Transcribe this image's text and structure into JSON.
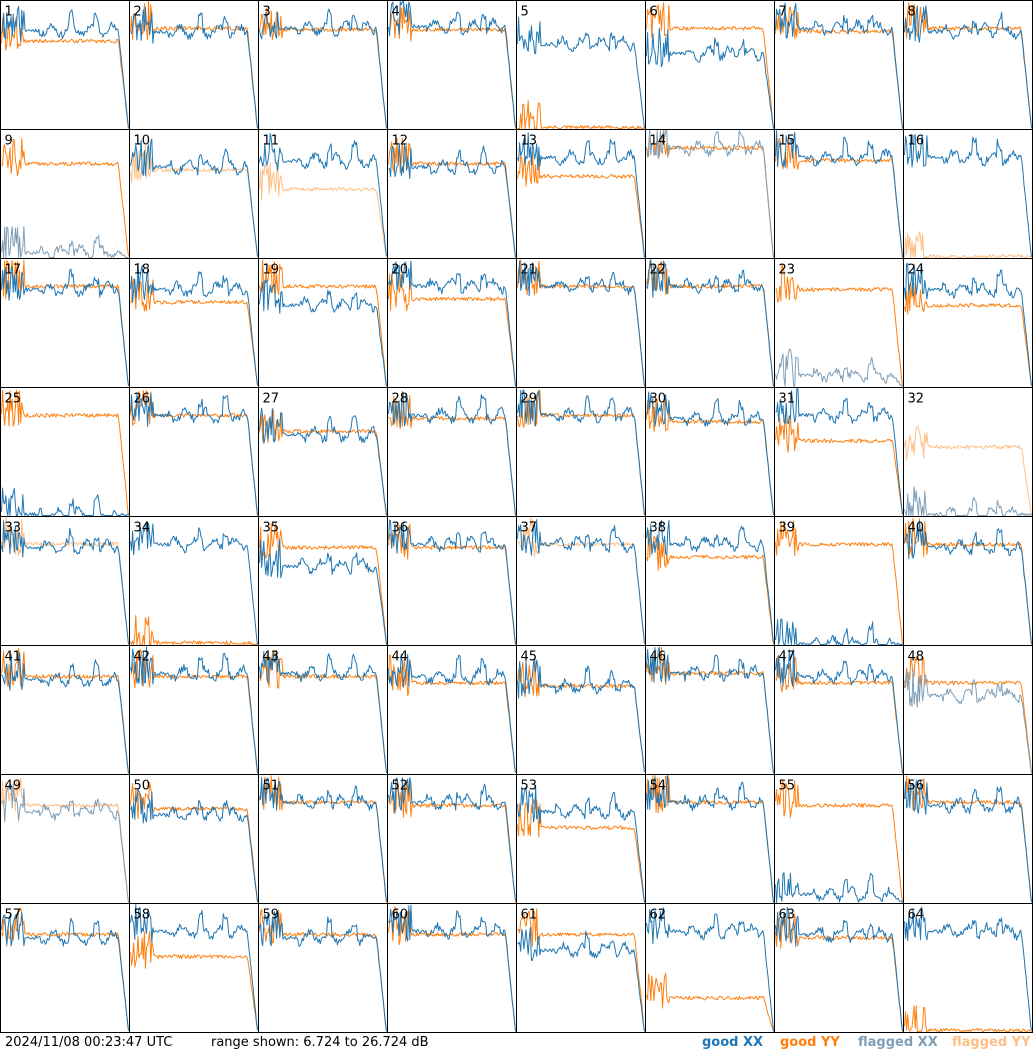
{
  "footer": {
    "timestamp": "2024/11/08 00:23:47 UTC",
    "range_label": "range shown: 6.724 to 26.724 dB"
  },
  "legend": [
    {
      "pol": "XX",
      "label": "good XX",
      "color": "#1f77b4"
    },
    {
      "pol": "YY",
      "label": "good YY",
      "color": "#ff7f0e"
    },
    {
      "pol": "XX",
      "label": "flagged XX",
      "color": "#7f9fb8"
    },
    {
      "pol": "YY",
      "label": "flagged YY",
      "color": "#ffbf86"
    }
  ],
  "chart_data": {
    "type": "line",
    "grid": {
      "rows": 8,
      "cols": 8
    },
    "ylim": [
      6.724,
      26.724
    ],
    "yunit": "dB",
    "panel_labels": [
      "1",
      "2",
      "3",
      "4",
      "5",
      "6",
      "7",
      "8",
      "9",
      "10",
      "11",
      "12",
      "13",
      "14",
      "15",
      "16",
      "17",
      "18",
      "19",
      "20",
      "21",
      "22",
      "23",
      "24",
      "25",
      "26",
      "27",
      "28",
      "29",
      "30",
      "31",
      "32",
      "33",
      "34",
      "35",
      "36",
      "37",
      "38",
      "39",
      "40",
      "41",
      "42",
      "43",
      "44",
      "45",
      "46",
      "47",
      "48",
      "49",
      "50",
      "51",
      "52",
      "53",
      "54",
      "55",
      "56",
      "57",
      "58",
      "59",
      "60",
      "61",
      "62",
      "63",
      "64"
    ],
    "series_by_tile": [
      {
        "tile": 1,
        "xx": {
          "flagged": false,
          "level": 22.2
        },
        "yy": {
          "flagged": false,
          "level": 20.5
        }
      },
      {
        "tile": 2,
        "xx": {
          "flagged": false,
          "level": 22.0
        },
        "yy": {
          "flagged": false,
          "level": 22.5
        }
      },
      {
        "tile": 3,
        "xx": {
          "flagged": false,
          "level": 22.5
        },
        "yy": {
          "flagged": false,
          "level": 22.3
        }
      },
      {
        "tile": 4,
        "xx": {
          "flagged": false,
          "level": 22.8
        },
        "yy": {
          "flagged": false,
          "level": 22.3
        }
      },
      {
        "tile": 5,
        "xx": {
          "flagged": false,
          "level": 20.0
        },
        "yy": {
          "flagged": false,
          "level": 6.9
        }
      },
      {
        "tile": 6,
        "xx": {
          "flagged": false,
          "level": 18.5
        },
        "yy": {
          "flagged": false,
          "level": 22.5
        }
      },
      {
        "tile": 7,
        "xx": {
          "flagged": false,
          "level": 22.5
        },
        "yy": {
          "flagged": false,
          "level": 22.0
        }
      },
      {
        "tile": 8,
        "xx": {
          "flagged": false,
          "level": 22.0
        },
        "yy": {
          "flagged": false,
          "level": 22.5
        }
      },
      {
        "tile": 9,
        "xx": {
          "flagged": true,
          "level": 7.5
        },
        "yy": {
          "flagged": false,
          "level": 21.5
        }
      },
      {
        "tile": 10,
        "xx": {
          "flagged": false,
          "level": 21.0
        },
        "yy": {
          "flagged": true,
          "level": 20.5
        }
      },
      {
        "tile": 11,
        "xx": {
          "flagged": false,
          "level": 22.0
        },
        "yy": {
          "flagged": true,
          "level": 17.5
        }
      },
      {
        "tile": 12,
        "xx": {
          "flagged": false,
          "level": 21.0
        },
        "yy": {
          "flagged": false,
          "level": 21.5
        }
      },
      {
        "tile": 13,
        "xx": {
          "flagged": false,
          "level": 22.5
        },
        "yy": {
          "flagged": false,
          "level": 19.5
        }
      },
      {
        "tile": 14,
        "xx": {
          "flagged": true,
          "level": 24.0
        },
        "yy": {
          "flagged": false,
          "level": 24.0
        }
      },
      {
        "tile": 15,
        "xx": {
          "flagged": false,
          "level": 22.5
        },
        "yy": {
          "flagged": false,
          "level": 22.0
        }
      },
      {
        "tile": 16,
        "xx": {
          "flagged": false,
          "level": 22.5
        },
        "yy": {
          "flagged": true,
          "level": 6.9
        }
      },
      {
        "tile": 17,
        "xx": {
          "flagged": false,
          "level": 22.0
        },
        "yy": {
          "flagged": false,
          "level": 22.5
        }
      },
      {
        "tile": 18,
        "xx": {
          "flagged": false,
          "level": 22.0
        },
        "yy": {
          "flagged": false,
          "level": 20.0
        }
      },
      {
        "tile": 19,
        "xx": {
          "flagged": false,
          "level": 19.5
        },
        "yy": {
          "flagged": false,
          "level": 22.5
        }
      },
      {
        "tile": 20,
        "xx": {
          "flagged": false,
          "level": 22.5
        },
        "yy": {
          "flagged": false,
          "level": 20.5
        }
      },
      {
        "tile": 21,
        "xx": {
          "flagged": false,
          "level": 22.5
        },
        "yy": {
          "flagged": false,
          "level": 22.5
        }
      },
      {
        "tile": 22,
        "xx": {
          "flagged": false,
          "level": 22.5
        },
        "yy": {
          "flagged": false,
          "level": 22.5
        }
      },
      {
        "tile": 23,
        "xx": {
          "flagged": true,
          "level": 8.5
        },
        "yy": {
          "flagged": false,
          "level": 22.0
        }
      },
      {
        "tile": 24,
        "xx": {
          "flagged": false,
          "level": 22.0
        },
        "yy": {
          "flagged": false,
          "level": 19.5
        }
      },
      {
        "tile": 25,
        "xx": {
          "flagged": false,
          "level": 6.9
        },
        "yy": {
          "flagged": false,
          "level": 22.5
        }
      },
      {
        "tile": 26,
        "xx": {
          "flagged": false,
          "level": 22.5
        },
        "yy": {
          "flagged": false,
          "level": 22.5
        }
      },
      {
        "tile": 27,
        "xx": {
          "flagged": false,
          "level": 19.5
        },
        "yy": {
          "flagged": false,
          "level": 20.0
        }
      },
      {
        "tile": 28,
        "xx": {
          "flagged": false,
          "level": 22.5
        },
        "yy": {
          "flagged": false,
          "level": 22.0
        }
      },
      {
        "tile": 29,
        "xx": {
          "flagged": false,
          "level": 22.5
        },
        "yy": {
          "flagged": false,
          "level": 22.5
        }
      },
      {
        "tile": 30,
        "xx": {
          "flagged": false,
          "level": 22.0
        },
        "yy": {
          "flagged": false,
          "level": 21.5
        }
      },
      {
        "tile": 31,
        "xx": {
          "flagged": false,
          "level": 22.5
        },
        "yy": {
          "flagged": false,
          "level": 18.5
        }
      },
      {
        "tile": 32,
        "xx": {
          "flagged": true,
          "level": 6.9
        },
        "yy": {
          "flagged": true,
          "level": 17.5
        }
      },
      {
        "tile": 33,
        "xx": {
          "flagged": false,
          "level": 22.0
        },
        "yy": {
          "flagged": true,
          "level": 22.5
        }
      },
      {
        "tile": 34,
        "xx": {
          "flagged": false,
          "level": 22.5
        },
        "yy": {
          "flagged": false,
          "level": 7.0
        }
      },
      {
        "tile": 35,
        "xx": {
          "flagged": false,
          "level": 19.0
        },
        "yy": {
          "flagged": false,
          "level": 22.0
        }
      },
      {
        "tile": 36,
        "xx": {
          "flagged": false,
          "level": 22.5
        },
        "yy": {
          "flagged": false,
          "level": 22.0
        }
      },
      {
        "tile": 37,
        "xx": {
          "flagged": false,
          "level": 22.5
        },
        "yy": {
          "flagged": true,
          "level": 22.5
        }
      },
      {
        "tile": 38,
        "xx": {
          "flagged": false,
          "level": 22.5
        },
        "yy": {
          "flagged": false,
          "level": 20.5
        }
      },
      {
        "tile": 39,
        "xx": {
          "flagged": false,
          "level": 6.9
        },
        "yy": {
          "flagged": false,
          "level": 22.5
        }
      },
      {
        "tile": 40,
        "xx": {
          "flagged": false,
          "level": 22.0
        },
        "yy": {
          "flagged": false,
          "level": 22.5
        }
      },
      {
        "tile": 41,
        "xx": {
          "flagged": false,
          "level": 21.5
        },
        "yy": {
          "flagged": false,
          "level": 22.0
        }
      },
      {
        "tile": 42,
        "xx": {
          "flagged": false,
          "level": 22.5
        },
        "yy": {
          "flagged": false,
          "level": 22.0
        }
      },
      {
        "tile": 43,
        "xx": {
          "flagged": false,
          "level": 22.5
        },
        "yy": {
          "flagged": false,
          "level": 22.0
        }
      },
      {
        "tile": 44,
        "xx": {
          "flagged": false,
          "level": 22.0
        },
        "yy": {
          "flagged": false,
          "level": 21.0
        }
      },
      {
        "tile": 45,
        "xx": {
          "flagged": false,
          "level": 20.5
        },
        "yy": {
          "flagged": false,
          "level": 20.5
        }
      },
      {
        "tile": 46,
        "xx": {
          "flagged": false,
          "level": 22.5
        },
        "yy": {
          "flagged": false,
          "level": 22.5
        }
      },
      {
        "tile": 47,
        "xx": {
          "flagged": false,
          "level": 22.0
        },
        "yy": {
          "flagged": false,
          "level": 21.0
        }
      },
      {
        "tile": 48,
        "xx": {
          "flagged": true,
          "level": 19.0
        },
        "yy": {
          "flagged": false,
          "level": 21.0
        }
      },
      {
        "tile": 49,
        "xx": {
          "flagged": true,
          "level": 21.0
        },
        "yy": {
          "flagged": true,
          "level": 22.0
        }
      },
      {
        "tile": 50,
        "xx": {
          "flagged": false,
          "level": 20.5
        },
        "yy": {
          "flagged": false,
          "level": 21.5
        }
      },
      {
        "tile": 51,
        "xx": {
          "flagged": false,
          "level": 22.5
        },
        "yy": {
          "flagged": false,
          "level": 22.5
        }
      },
      {
        "tile": 52,
        "xx": {
          "flagged": false,
          "level": 22.5
        },
        "yy": {
          "flagged": false,
          "level": 22.0
        }
      },
      {
        "tile": 53,
        "xx": {
          "flagged": false,
          "level": 21.0
        },
        "yy": {
          "flagged": false,
          "level": 18.5
        }
      },
      {
        "tile": 54,
        "xx": {
          "flagged": false,
          "level": 22.5
        },
        "yy": {
          "flagged": false,
          "level": 22.5
        }
      },
      {
        "tile": 55,
        "xx": {
          "flagged": false,
          "level": 8.0
        },
        "yy": {
          "flagged": false,
          "level": 22.0
        }
      },
      {
        "tile": 56,
        "xx": {
          "flagged": false,
          "level": 22.0
        },
        "yy": {
          "flagged": false,
          "level": 22.5
        }
      },
      {
        "tile": 57,
        "xx": {
          "flagged": false,
          "level": 21.5
        },
        "yy": {
          "flagged": false,
          "level": 22.0
        }
      },
      {
        "tile": 58,
        "xx": {
          "flagged": false,
          "level": 22.5
        },
        "yy": {
          "flagged": false,
          "level": 18.5
        }
      },
      {
        "tile": 59,
        "xx": {
          "flagged": false,
          "level": 21.5
        },
        "yy": {
          "flagged": false,
          "level": 22.0
        }
      },
      {
        "tile": 60,
        "xx": {
          "flagged": false,
          "level": 22.5
        },
        "yy": {
          "flagged": false,
          "level": 22.0
        }
      },
      {
        "tile": 61,
        "xx": {
          "flagged": false,
          "level": 19.5
        },
        "yy": {
          "flagged": false,
          "level": 22.0
        }
      },
      {
        "tile": 62,
        "xx": {
          "flagged": false,
          "level": 22.5
        },
        "yy": {
          "flagged": false,
          "level": 12.0
        }
      },
      {
        "tile": 63,
        "xx": {
          "flagged": false,
          "level": 22.0
        },
        "yy": {
          "flagged": false,
          "level": 21.5
        }
      },
      {
        "tile": 64,
        "xx": {
          "flagged": false,
          "level": 22.5
        },
        "yy": {
          "flagged": false,
          "level": 6.9
        }
      }
    ]
  }
}
